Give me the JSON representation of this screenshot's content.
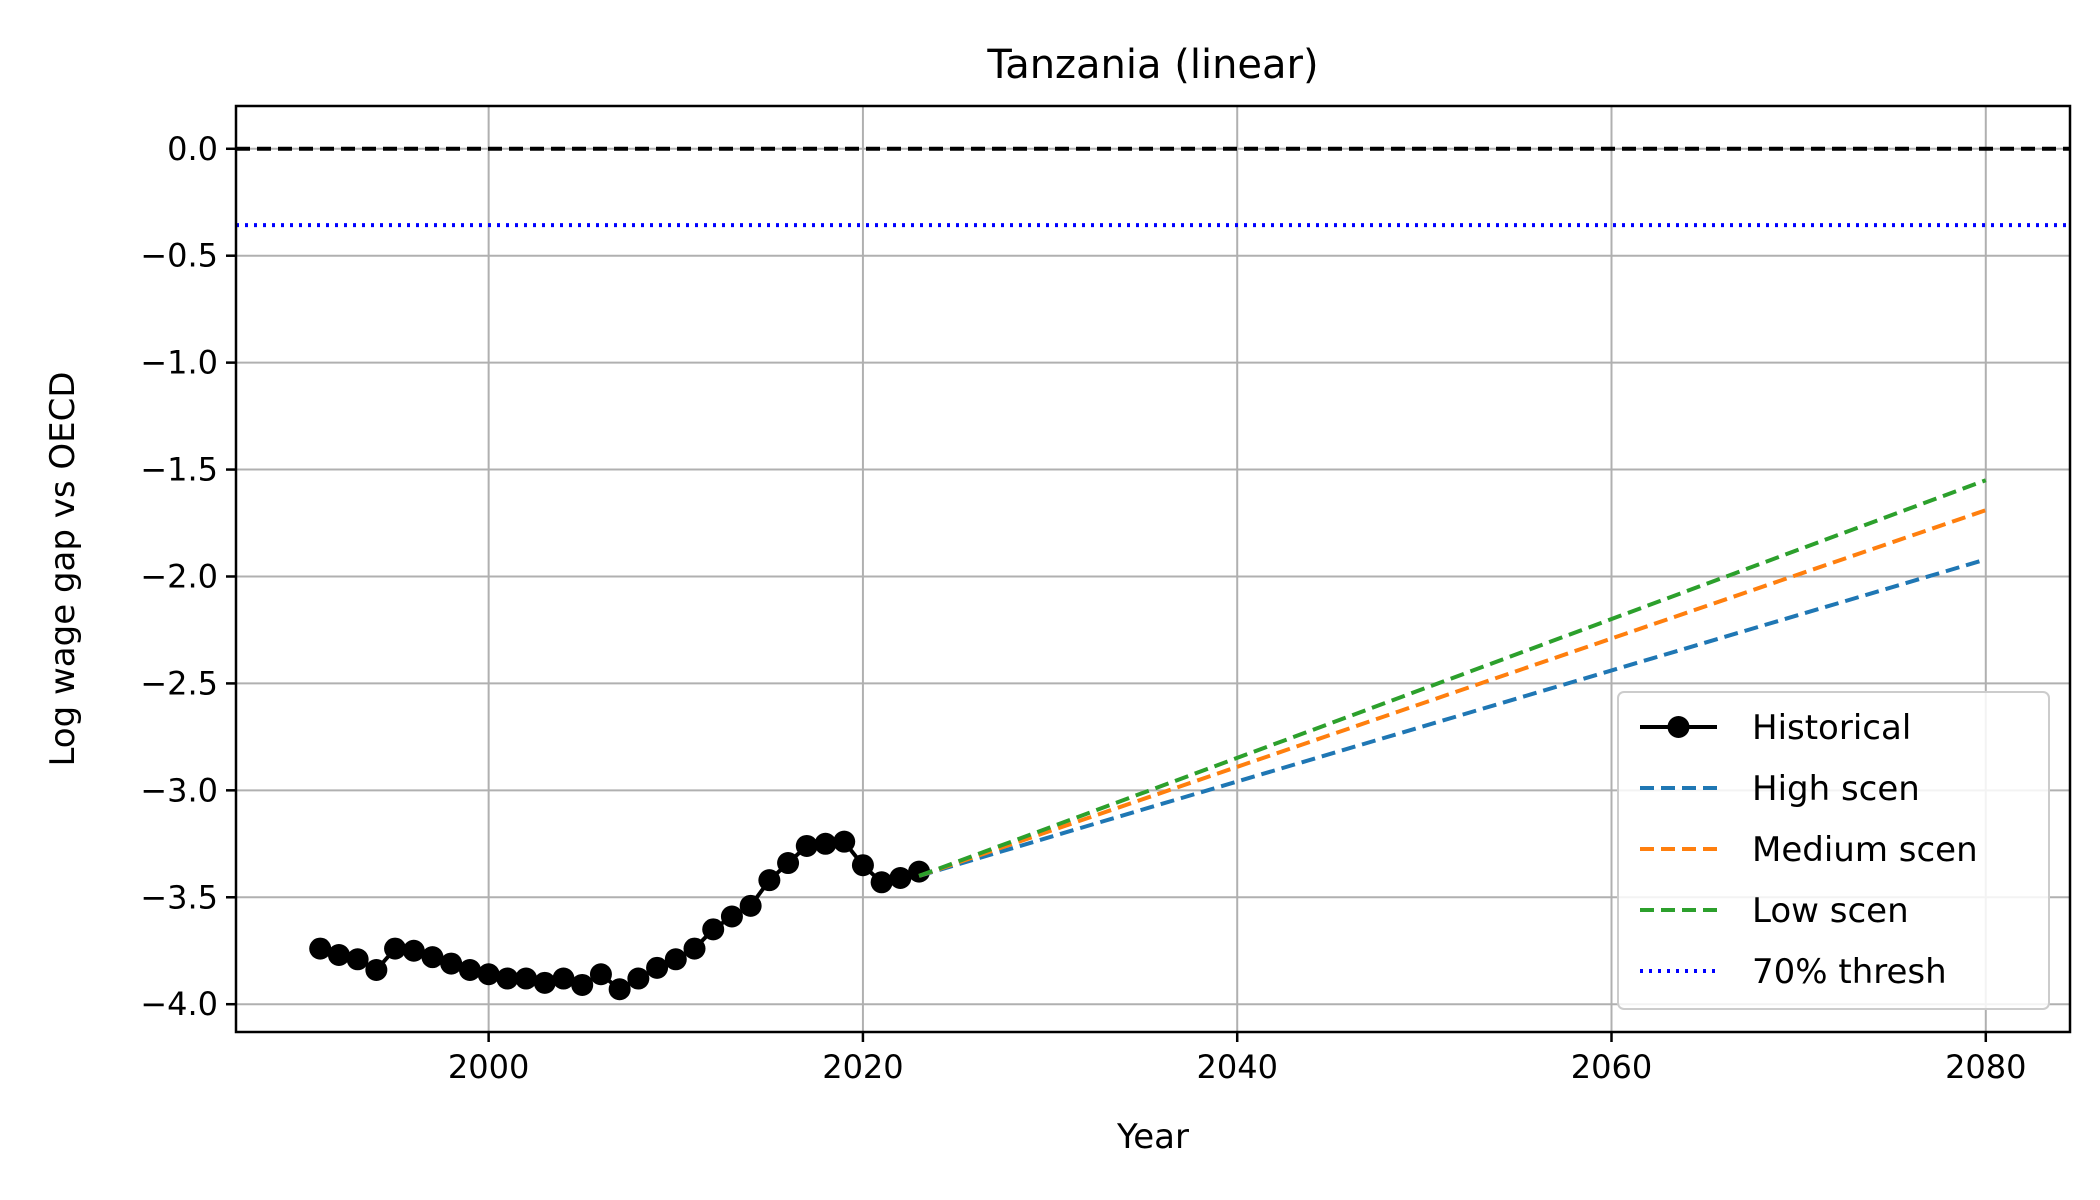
{
  "chart_data": {
    "type": "line",
    "title": "Tanzania (linear)",
    "xlabel": "Year",
    "ylabel": "Log wage gap vs OECD",
    "xlim": [
      1986.5,
      2084.5
    ],
    "ylim": [
      -4.13,
      0.2
    ],
    "x_ticks": [
      2000,
      2020,
      2040,
      2060,
      2080
    ],
    "y_ticks": [
      0.0,
      -0.5,
      -1.0,
      -1.5,
      -2.0,
      -2.5,
      -3.0,
      -3.5,
      -4.0
    ],
    "x_tick_labels": [
      "2000",
      "2020",
      "2040",
      "2060",
      "2080"
    ],
    "y_tick_labels": [
      "0.0",
      "−0.5",
      "−1.0",
      "−1.5",
      "−2.0",
      "−2.5",
      "−3.0",
      "−3.5",
      "−4.0"
    ],
    "grid": true,
    "legend_position": "lower-right",
    "reference_lines": [
      {
        "y": 0.0,
        "color": "#000000",
        "style": "dashed"
      },
      {
        "y": -0.357,
        "color": "#0000ff",
        "style": "dotted"
      }
    ],
    "series": [
      {
        "name": "Historical",
        "color": "#000000",
        "style": "solid-markers",
        "x": [
          1991,
          1992,
          1993,
          1994,
          1995,
          1996,
          1997,
          1998,
          1999,
          2000,
          2001,
          2002,
          2003,
          2004,
          2005,
          2006,
          2007,
          2008,
          2009,
          2010,
          2011,
          2012,
          2013,
          2014,
          2015,
          2016,
          2017,
          2018,
          2019,
          2020,
          2021,
          2022,
          2023
        ],
        "y": [
          -3.74,
          -3.77,
          -3.79,
          -3.84,
          -3.74,
          -3.75,
          -3.78,
          -3.81,
          -3.84,
          -3.86,
          -3.88,
          -3.88,
          -3.9,
          -3.88,
          -3.91,
          -3.86,
          -3.93,
          -3.88,
          -3.83,
          -3.79,
          -3.74,
          -3.65,
          -3.59,
          -3.54,
          -3.42,
          -3.34,
          -3.26,
          -3.25,
          -3.24,
          -3.35,
          -3.43,
          -3.41,
          -3.38
        ]
      },
      {
        "name": "High scen",
        "color": "#1f77b4",
        "style": "dashed",
        "x": [
          2023,
          2080
        ],
        "y": [
          -3.4,
          -1.92
        ]
      },
      {
        "name": "Medium scen",
        "color": "#ff7f0e",
        "style": "dashed",
        "x": [
          2023,
          2080
        ],
        "y": [
          -3.4,
          -1.69
        ]
      },
      {
        "name": "Low scen",
        "color": "#2ca02c",
        "style": "dashed",
        "x": [
          2023,
          2080
        ],
        "y": [
          -3.4,
          -1.55
        ]
      },
      {
        "name": "70% thresh",
        "color": "#0000ff",
        "style": "dotted",
        "x": [],
        "y": []
      }
    ]
  }
}
